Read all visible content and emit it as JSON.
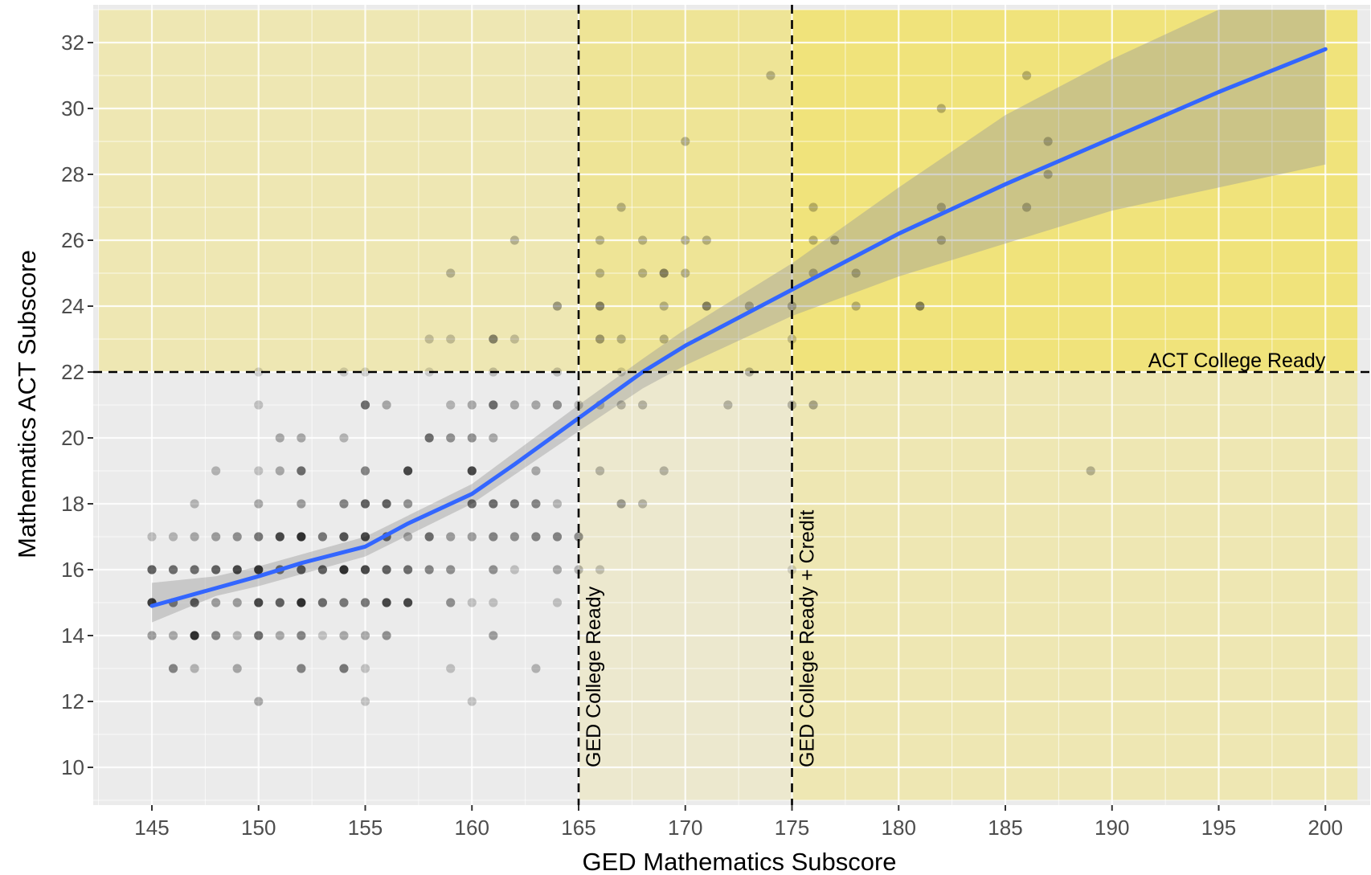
{
  "chart_data": {
    "type": "scatter",
    "xlabel": "GED Mathematics Subscore",
    "ylabel": "Mathematics ACT Subscore",
    "xlim": [
      142.5,
      201.5
    ],
    "ylim": [
      9,
      33
    ],
    "x_ticks": [
      145,
      150,
      155,
      160,
      165,
      170,
      175,
      180,
      185,
      190,
      195,
      200
    ],
    "y_ticks": [
      10,
      12,
      14,
      16,
      18,
      20,
      22,
      24,
      26,
      28,
      30,
      32
    ],
    "grid": true,
    "legend": "none",
    "colors": {
      "panel": "#ebebeb",
      "grid": "#ffffff",
      "smooth_line": "#3366ff",
      "confidence_band": "#999999",
      "highlight": "#f5d900",
      "points": "#000000"
    },
    "regions": [
      {
        "x": [
          142.5,
          165
        ],
        "y": [
          22,
          33
        ],
        "shade": 0.24
      },
      {
        "x": [
          165,
          175
        ],
        "y": [
          22,
          33
        ],
        "shade": 0.36
      },
      {
        "x": [
          175,
          201.5
        ],
        "y": [
          22,
          33
        ],
        "shade": 0.48
      },
      {
        "x": [
          165,
          175
        ],
        "y": [
          9,
          22
        ],
        "shade": 0.12
      },
      {
        "x": [
          175,
          201.5
        ],
        "y": [
          9,
          22
        ],
        "shade": 0.24
      }
    ],
    "reference_lines": [
      {
        "axis": "y",
        "value": 22,
        "label": "ACT College Ready"
      },
      {
        "axis": "x",
        "value": 165,
        "label": "GED College Ready"
      },
      {
        "axis": "x",
        "value": 175,
        "label": "GED College Ready + Credit"
      }
    ],
    "smooth": {
      "x": [
        145,
        150,
        152,
        155,
        157,
        160,
        162,
        165,
        168,
        170,
        175,
        180,
        185,
        190,
        195,
        200
      ],
      "y": [
        14.9,
        15.8,
        16.2,
        16.7,
        17.4,
        18.3,
        19.2,
        20.6,
        22.0,
        22.8,
        24.5,
        26.2,
        27.7,
        29.1,
        30.5,
        31.8
      ]
    },
    "confidence_band": {
      "x": [
        145,
        148,
        150,
        155,
        160,
        165,
        168,
        170,
        175,
        180,
        185,
        190,
        195,
        200
      ],
      "lower": [
        14.4,
        15.2,
        15.5,
        16.4,
        18.0,
        20.2,
        21.5,
        22.2,
        23.7,
        24.9,
        25.9,
        26.9,
        27.6,
        28.3
      ],
      "upper": [
        15.6,
        15.8,
        16.1,
        17.0,
        18.6,
        21.0,
        22.4,
        23.3,
        25.3,
        27.6,
        29.8,
        31.5,
        33.0,
        33.0
      ]
    },
    "points": [
      [
        145,
        17,
        0.22
      ],
      [
        145,
        16,
        0.6
      ],
      [
        145,
        15,
        0.75
      ],
      [
        145,
        14,
        0.35
      ],
      [
        146,
        17,
        0.25
      ],
      [
        146,
        16,
        0.55
      ],
      [
        146,
        15,
        0.45
      ],
      [
        146,
        14,
        0.3
      ],
      [
        146,
        13,
        0.45
      ],
      [
        147,
        18,
        0.25
      ],
      [
        147,
        17,
        0.3
      ],
      [
        147,
        16,
        0.55
      ],
      [
        147,
        15,
        0.6
      ],
      [
        147,
        14,
        0.8
      ],
      [
        147,
        13,
        0.25
      ],
      [
        148,
        19,
        0.25
      ],
      [
        148,
        17,
        0.35
      ],
      [
        148,
        16,
        0.6
      ],
      [
        148,
        15,
        0.35
      ],
      [
        148,
        14,
        0.45
      ],
      [
        149,
        17,
        0.4
      ],
      [
        149,
        16,
        0.7
      ],
      [
        149,
        15,
        0.35
      ],
      [
        149,
        14,
        0.25
      ],
      [
        149,
        13,
        0.3
      ],
      [
        150,
        22,
        0.15
      ],
      [
        150,
        21,
        0.2
      ],
      [
        150,
        19,
        0.2
      ],
      [
        150,
        18,
        0.3
      ],
      [
        150,
        17,
        0.5
      ],
      [
        150,
        16,
        0.75
      ],
      [
        150,
        15,
        0.7
      ],
      [
        150,
        14,
        0.55
      ],
      [
        150,
        12,
        0.3
      ],
      [
        151,
        20,
        0.3
      ],
      [
        151,
        19,
        0.3
      ],
      [
        151,
        17,
        0.7
      ],
      [
        151,
        16,
        0.5
      ],
      [
        151,
        15,
        0.6
      ],
      [
        151,
        14,
        0.3
      ],
      [
        152,
        20,
        0.3
      ],
      [
        152,
        19,
        0.55
      ],
      [
        152,
        18,
        0.35
      ],
      [
        152,
        17,
        0.8
      ],
      [
        152,
        16,
        0.6
      ],
      [
        152,
        15,
        0.8
      ],
      [
        152,
        14,
        0.45
      ],
      [
        152,
        13,
        0.45
      ],
      [
        153,
        17,
        0.5
      ],
      [
        153,
        16,
        0.6
      ],
      [
        153,
        15,
        0.55
      ],
      [
        153,
        14,
        0.2
      ],
      [
        154,
        22,
        0.15
      ],
      [
        154,
        20,
        0.25
      ],
      [
        154,
        18,
        0.45
      ],
      [
        154,
        17,
        0.65
      ],
      [
        154,
        16,
        0.8
      ],
      [
        154,
        15,
        0.5
      ],
      [
        154,
        14,
        0.3
      ],
      [
        154,
        13,
        0.5
      ],
      [
        155,
        22,
        0.15
      ],
      [
        155,
        21,
        0.55
      ],
      [
        155,
        19,
        0.45
      ],
      [
        155,
        18,
        0.6
      ],
      [
        155,
        17,
        0.7
      ],
      [
        155,
        16,
        0.7
      ],
      [
        155,
        15,
        0.5
      ],
      [
        155,
        14,
        0.3
      ],
      [
        155,
        13,
        0.2
      ],
      [
        155,
        12,
        0.2
      ],
      [
        156,
        21,
        0.3
      ],
      [
        156,
        18,
        0.6
      ],
      [
        156,
        17,
        0.55
      ],
      [
        156,
        16,
        0.6
      ],
      [
        156,
        15,
        0.7
      ],
      [
        156,
        14,
        0.4
      ],
      [
        157,
        19,
        0.7
      ],
      [
        157,
        18,
        0.4
      ],
      [
        157,
        17,
        0.3
      ],
      [
        157,
        16,
        0.55
      ],
      [
        157,
        15,
        0.7
      ],
      [
        158,
        23,
        0.2
      ],
      [
        158,
        22,
        0.15
      ],
      [
        158,
        20,
        0.55
      ],
      [
        158,
        17,
        0.55
      ],
      [
        158,
        16,
        0.45
      ],
      [
        159,
        25,
        0.25
      ],
      [
        159,
        23,
        0.2
      ],
      [
        159,
        21,
        0.25
      ],
      [
        159,
        20,
        0.4
      ],
      [
        159,
        17,
        0.35
      ],
      [
        159,
        16,
        0.4
      ],
      [
        159,
        15,
        0.4
      ],
      [
        159,
        13,
        0.2
      ],
      [
        160,
        21,
        0.3
      ],
      [
        160,
        20,
        0.4
      ],
      [
        160,
        19,
        0.7
      ],
      [
        160,
        18,
        0.55
      ],
      [
        160,
        17,
        0.35
      ],
      [
        160,
        15,
        0.2
      ],
      [
        160,
        12,
        0.2
      ],
      [
        161,
        23,
        0.45
      ],
      [
        161,
        22,
        0.2
      ],
      [
        161,
        21,
        0.55
      ],
      [
        161,
        20,
        0.3
      ],
      [
        161,
        18,
        0.55
      ],
      [
        161,
        17,
        0.45
      ],
      [
        161,
        16,
        0.4
      ],
      [
        161,
        15,
        0.2
      ],
      [
        161,
        14,
        0.35
      ],
      [
        162,
        26,
        0.25
      ],
      [
        162,
        23,
        0.2
      ],
      [
        162,
        21,
        0.3
      ],
      [
        162,
        18,
        0.5
      ],
      [
        162,
        17,
        0.4
      ],
      [
        162,
        16,
        0.2
      ],
      [
        163,
        21,
        0.3
      ],
      [
        163,
        19,
        0.3
      ],
      [
        163,
        18,
        0.45
      ],
      [
        163,
        17,
        0.45
      ],
      [
        163,
        13,
        0.25
      ],
      [
        164,
        24,
        0.35
      ],
      [
        164,
        22,
        0.2
      ],
      [
        164,
        21,
        0.4
      ],
      [
        164,
        18,
        0.25
      ],
      [
        164,
        17,
        0.45
      ],
      [
        164,
        16,
        0.3
      ],
      [
        164,
        15,
        0.2
      ],
      [
        165,
        21,
        0.2
      ],
      [
        165,
        17,
        0.4
      ],
      [
        165,
        16,
        0.25
      ],
      [
        166,
        26,
        0.25
      ],
      [
        166,
        25,
        0.25
      ],
      [
        166,
        24,
        0.45
      ],
      [
        166,
        23,
        0.35
      ],
      [
        166,
        21,
        0.2
      ],
      [
        166,
        19,
        0.25
      ],
      [
        166,
        16,
        0.2
      ],
      [
        167,
        27,
        0.25
      ],
      [
        167,
        23,
        0.25
      ],
      [
        167,
        22,
        0.15
      ],
      [
        167,
        21,
        0.25
      ],
      [
        167,
        18,
        0.35
      ],
      [
        168,
        26,
        0.25
      ],
      [
        168,
        25,
        0.25
      ],
      [
        168,
        21,
        0.25
      ],
      [
        168,
        18,
        0.25
      ],
      [
        169,
        25,
        0.45
      ],
      [
        169,
        24,
        0.25
      ],
      [
        169,
        23,
        0.25
      ],
      [
        169,
        19,
        0.25
      ],
      [
        170,
        29,
        0.25
      ],
      [
        170,
        26,
        0.25
      ],
      [
        170,
        25,
        0.25
      ],
      [
        171,
        26,
        0.25
      ],
      [
        171,
        24,
        0.45
      ],
      [
        172,
        21,
        0.25
      ],
      [
        173,
        24,
        0.25
      ],
      [
        173,
        22,
        0.25
      ],
      [
        174,
        31,
        0.25
      ],
      [
        175,
        24,
        0.25
      ],
      [
        175,
        23,
        0.2
      ],
      [
        175,
        21,
        0.25
      ],
      [
        175,
        16,
        0.15
      ],
      [
        176,
        27,
        0.25
      ],
      [
        176,
        26,
        0.25
      ],
      [
        176,
        25,
        0.25
      ],
      [
        176,
        21,
        0.3
      ],
      [
        177,
        26,
        0.25
      ],
      [
        178,
        25,
        0.25
      ],
      [
        178,
        24,
        0.25
      ],
      [
        181,
        24,
        0.45
      ],
      [
        182,
        30,
        0.25
      ],
      [
        182,
        27,
        0.25
      ],
      [
        182,
        26,
        0.25
      ],
      [
        186,
        31,
        0.25
      ],
      [
        186,
        27,
        0.25
      ],
      [
        187,
        29,
        0.25
      ],
      [
        187,
        28,
        0.25
      ],
      [
        189,
        19,
        0.25
      ]
    ]
  }
}
